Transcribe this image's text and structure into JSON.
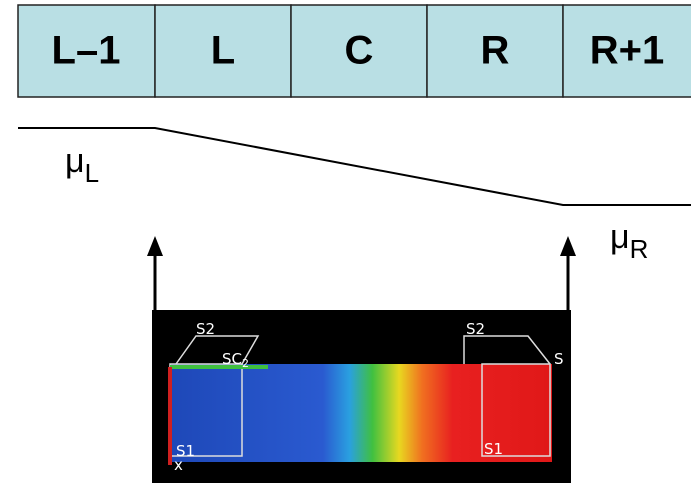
{
  "cells": [
    "L–1",
    "L",
    "C",
    "R",
    "R+1"
  ],
  "mu_left": {
    "symbol": "μ",
    "sub": "L"
  },
  "mu_right": {
    "symbol": "μ",
    "sub": "R"
  },
  "image_labels": [
    "S2",
    "SC",
    "2",
    "S2",
    "S",
    "S1",
    "S1",
    "x"
  ]
}
